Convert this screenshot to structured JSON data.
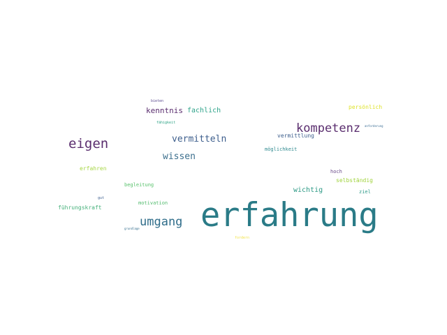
{
  "words": [
    {
      "text": "erfahrung",
      "color": "#2a7b87"
    },
    {
      "text": "kompetenz",
      "color": "#5a2d6e"
    },
    {
      "text": "eigen",
      "color": "#5a2d6e"
    },
    {
      "text": "umgang",
      "color": "#2f6d8a"
    },
    {
      "text": "vermitteln",
      "color": "#3e5f8d"
    },
    {
      "text": "wissen",
      "color": "#3d708e"
    },
    {
      "text": "kenntnis",
      "color": "#5a2d6e"
    },
    {
      "text": "fachlich",
      "color": "#2ea38a"
    },
    {
      "text": "wichtig",
      "color": "#2e9a86"
    },
    {
      "text": "vermittlung",
      "color": "#3e5f8d"
    },
    {
      "text": "persönlich",
      "color": "#dfe32c"
    },
    {
      "text": "möglichkeit",
      "color": "#2f8a8f"
    },
    {
      "text": "selbständig",
      "color": "#9fd23a"
    },
    {
      "text": "hoch",
      "color": "#6a4b8a"
    },
    {
      "text": "ziel",
      "color": "#2f9b8a"
    },
    {
      "text": "erfahren",
      "color": "#a7d646"
    },
    {
      "text": "begleitung",
      "color": "#58c26c"
    },
    {
      "text": "motivation",
      "color": "#52bb6e"
    },
    {
      "text": "führungskraft",
      "color": "#45b07a"
    },
    {
      "text": "gut",
      "color": "#3b5e8e"
    },
    {
      "text": "grundlage",
      "color": "#356f8e"
    },
    {
      "text": "fähigkeit",
      "color": "#2fa386"
    },
    {
      "text": "bieten",
      "color": "#5a4a8e"
    },
    {
      "text": "anforderung",
      "color": "#3b6d94"
    },
    {
      "text": "fordern",
      "color": "#f2e34a"
    }
  ]
}
